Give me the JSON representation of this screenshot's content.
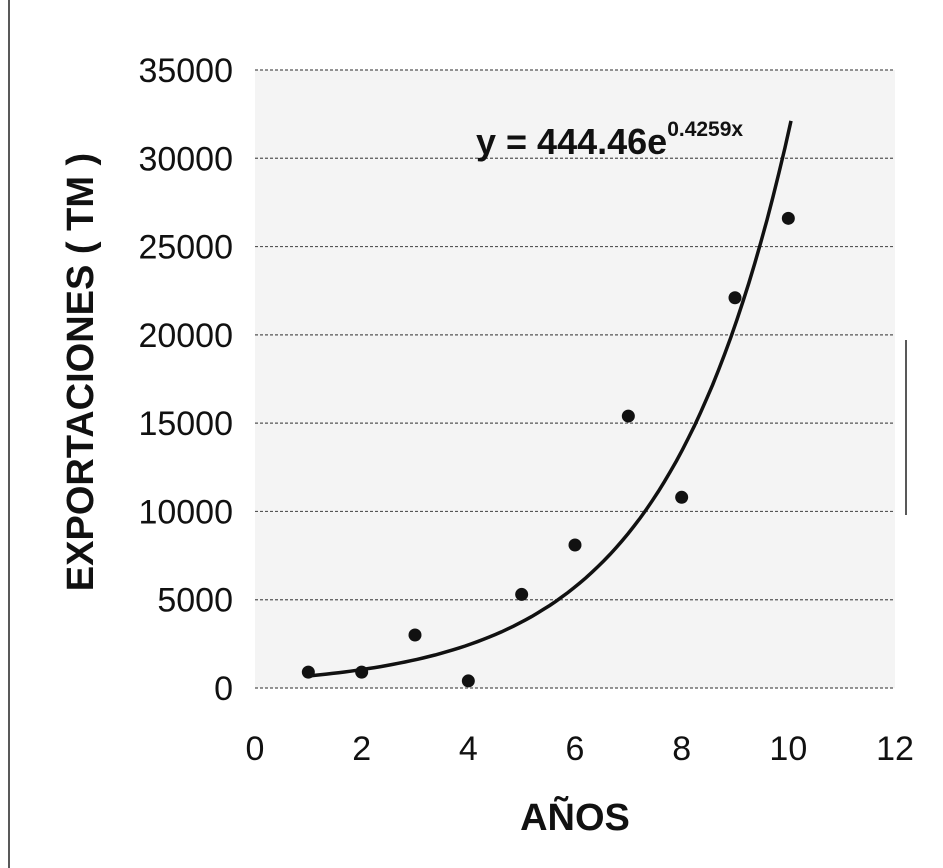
{
  "chart_data": {
    "type": "scatter",
    "xlabel": "AÑOS",
    "ylabel": "EXPORTACIONES ( TM )",
    "xlim": [
      0,
      12
    ],
    "ylim": [
      0,
      35000
    ],
    "x_ticks": [
      "0",
      "2",
      "4",
      "6",
      "8",
      "10",
      "12"
    ],
    "y_ticks": [
      "0",
      "5000",
      "10000",
      "15000",
      "20000",
      "25000",
      "30000",
      "35000"
    ],
    "grid": true,
    "series": [
      {
        "points": [
          {
            "x": 1,
            "y": 900
          },
          {
            "x": 2,
            "y": 900
          },
          {
            "x": 3,
            "y": 3000
          },
          {
            "x": 4,
            "y": 400
          },
          {
            "x": 5,
            "y": 5300
          },
          {
            "x": 6,
            "y": 8100
          },
          {
            "x": 7,
            "y": 15400
          },
          {
            "x": 8,
            "y": 10800
          },
          {
            "x": 9,
            "y": 22100
          },
          {
            "x": 10,
            "y": 26600
          }
        ]
      }
    ],
    "trendline": {
      "type": "exponential",
      "a": 444.46,
      "b": 0.4259,
      "x_range": [
        1,
        10.05
      ]
    },
    "annotation": {
      "equation_main": "y = 444.46e",
      "equation_exponent": "0.4259x"
    },
    "colors": {
      "points": "#111111",
      "trendline": "#111111",
      "grid": "#555555",
      "plot_background": "#f4f4f4"
    }
  }
}
